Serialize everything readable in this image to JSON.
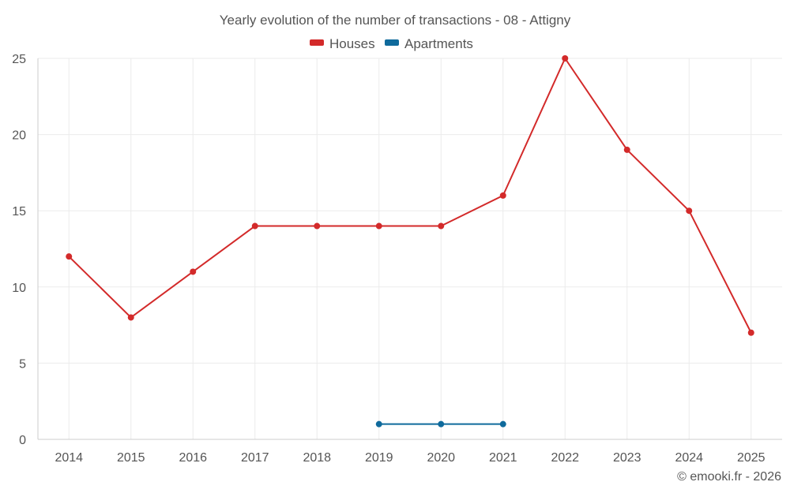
{
  "chart_data": {
    "type": "line",
    "title": "Yearly evolution of the number of transactions - 08 - Attigny",
    "categories": [
      "2014",
      "2015",
      "2016",
      "2017",
      "2018",
      "2019",
      "2020",
      "2021",
      "2022",
      "2023",
      "2024",
      "2025"
    ],
    "series": [
      {
        "name": "Houses",
        "color": "#d32a2a",
        "values": [
          12,
          8,
          11,
          14,
          14,
          14,
          14,
          16,
          25,
          19,
          15,
          7
        ]
      },
      {
        "name": "Apartments",
        "color": "#0f6a9c",
        "values": [
          null,
          null,
          null,
          null,
          null,
          1,
          1,
          1,
          null,
          null,
          null,
          null
        ]
      }
    ],
    "ylim": [
      0,
      25
    ],
    "yticks": [
      "0",
      "5",
      "10",
      "15",
      "20",
      "25"
    ],
    "xlabel": "",
    "ylabel": "",
    "grid": true,
    "legend_position": "top-center"
  },
  "credit": "© emooki.fr - 2026"
}
